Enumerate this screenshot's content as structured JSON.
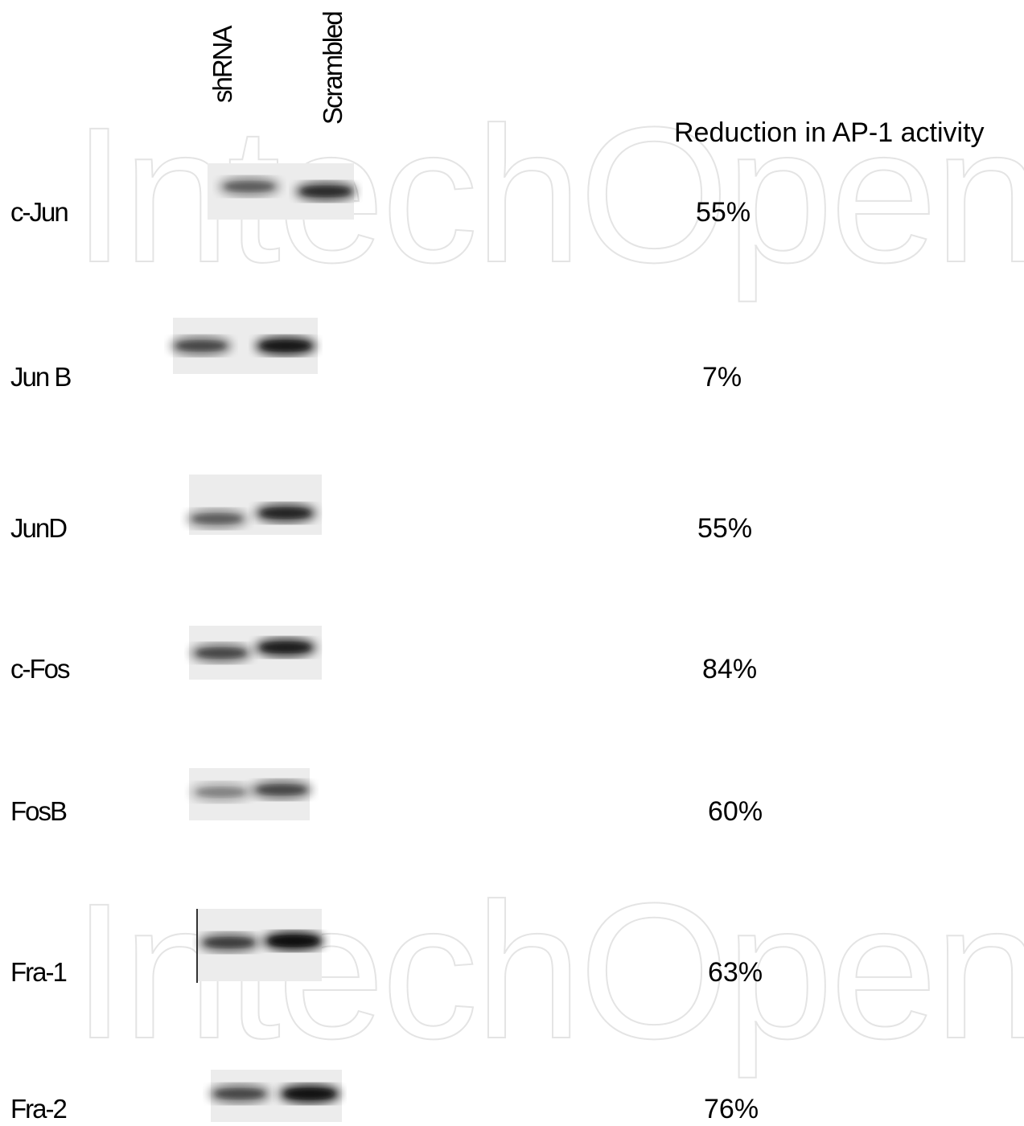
{
  "lanes": [
    "shRNA",
    "Scrambled"
  ],
  "reduction_header": "Reduction in AP-1 activity",
  "watermark": "IntechOpen",
  "rows": [
    {
      "label": "c-Jun",
      "reduction": "55%"
    },
    {
      "label": "Jun B",
      "reduction": "7%"
    },
    {
      "label": "JunD",
      "reduction": "55%"
    },
    {
      "label": "c-Fos",
      "reduction": "84%"
    },
    {
      "label": "FosB",
      "reduction": "60%"
    },
    {
      "label": "Fra-1",
      "reduction": "63%"
    },
    {
      "label": "Fra-2",
      "reduction": "76%"
    }
  ]
}
